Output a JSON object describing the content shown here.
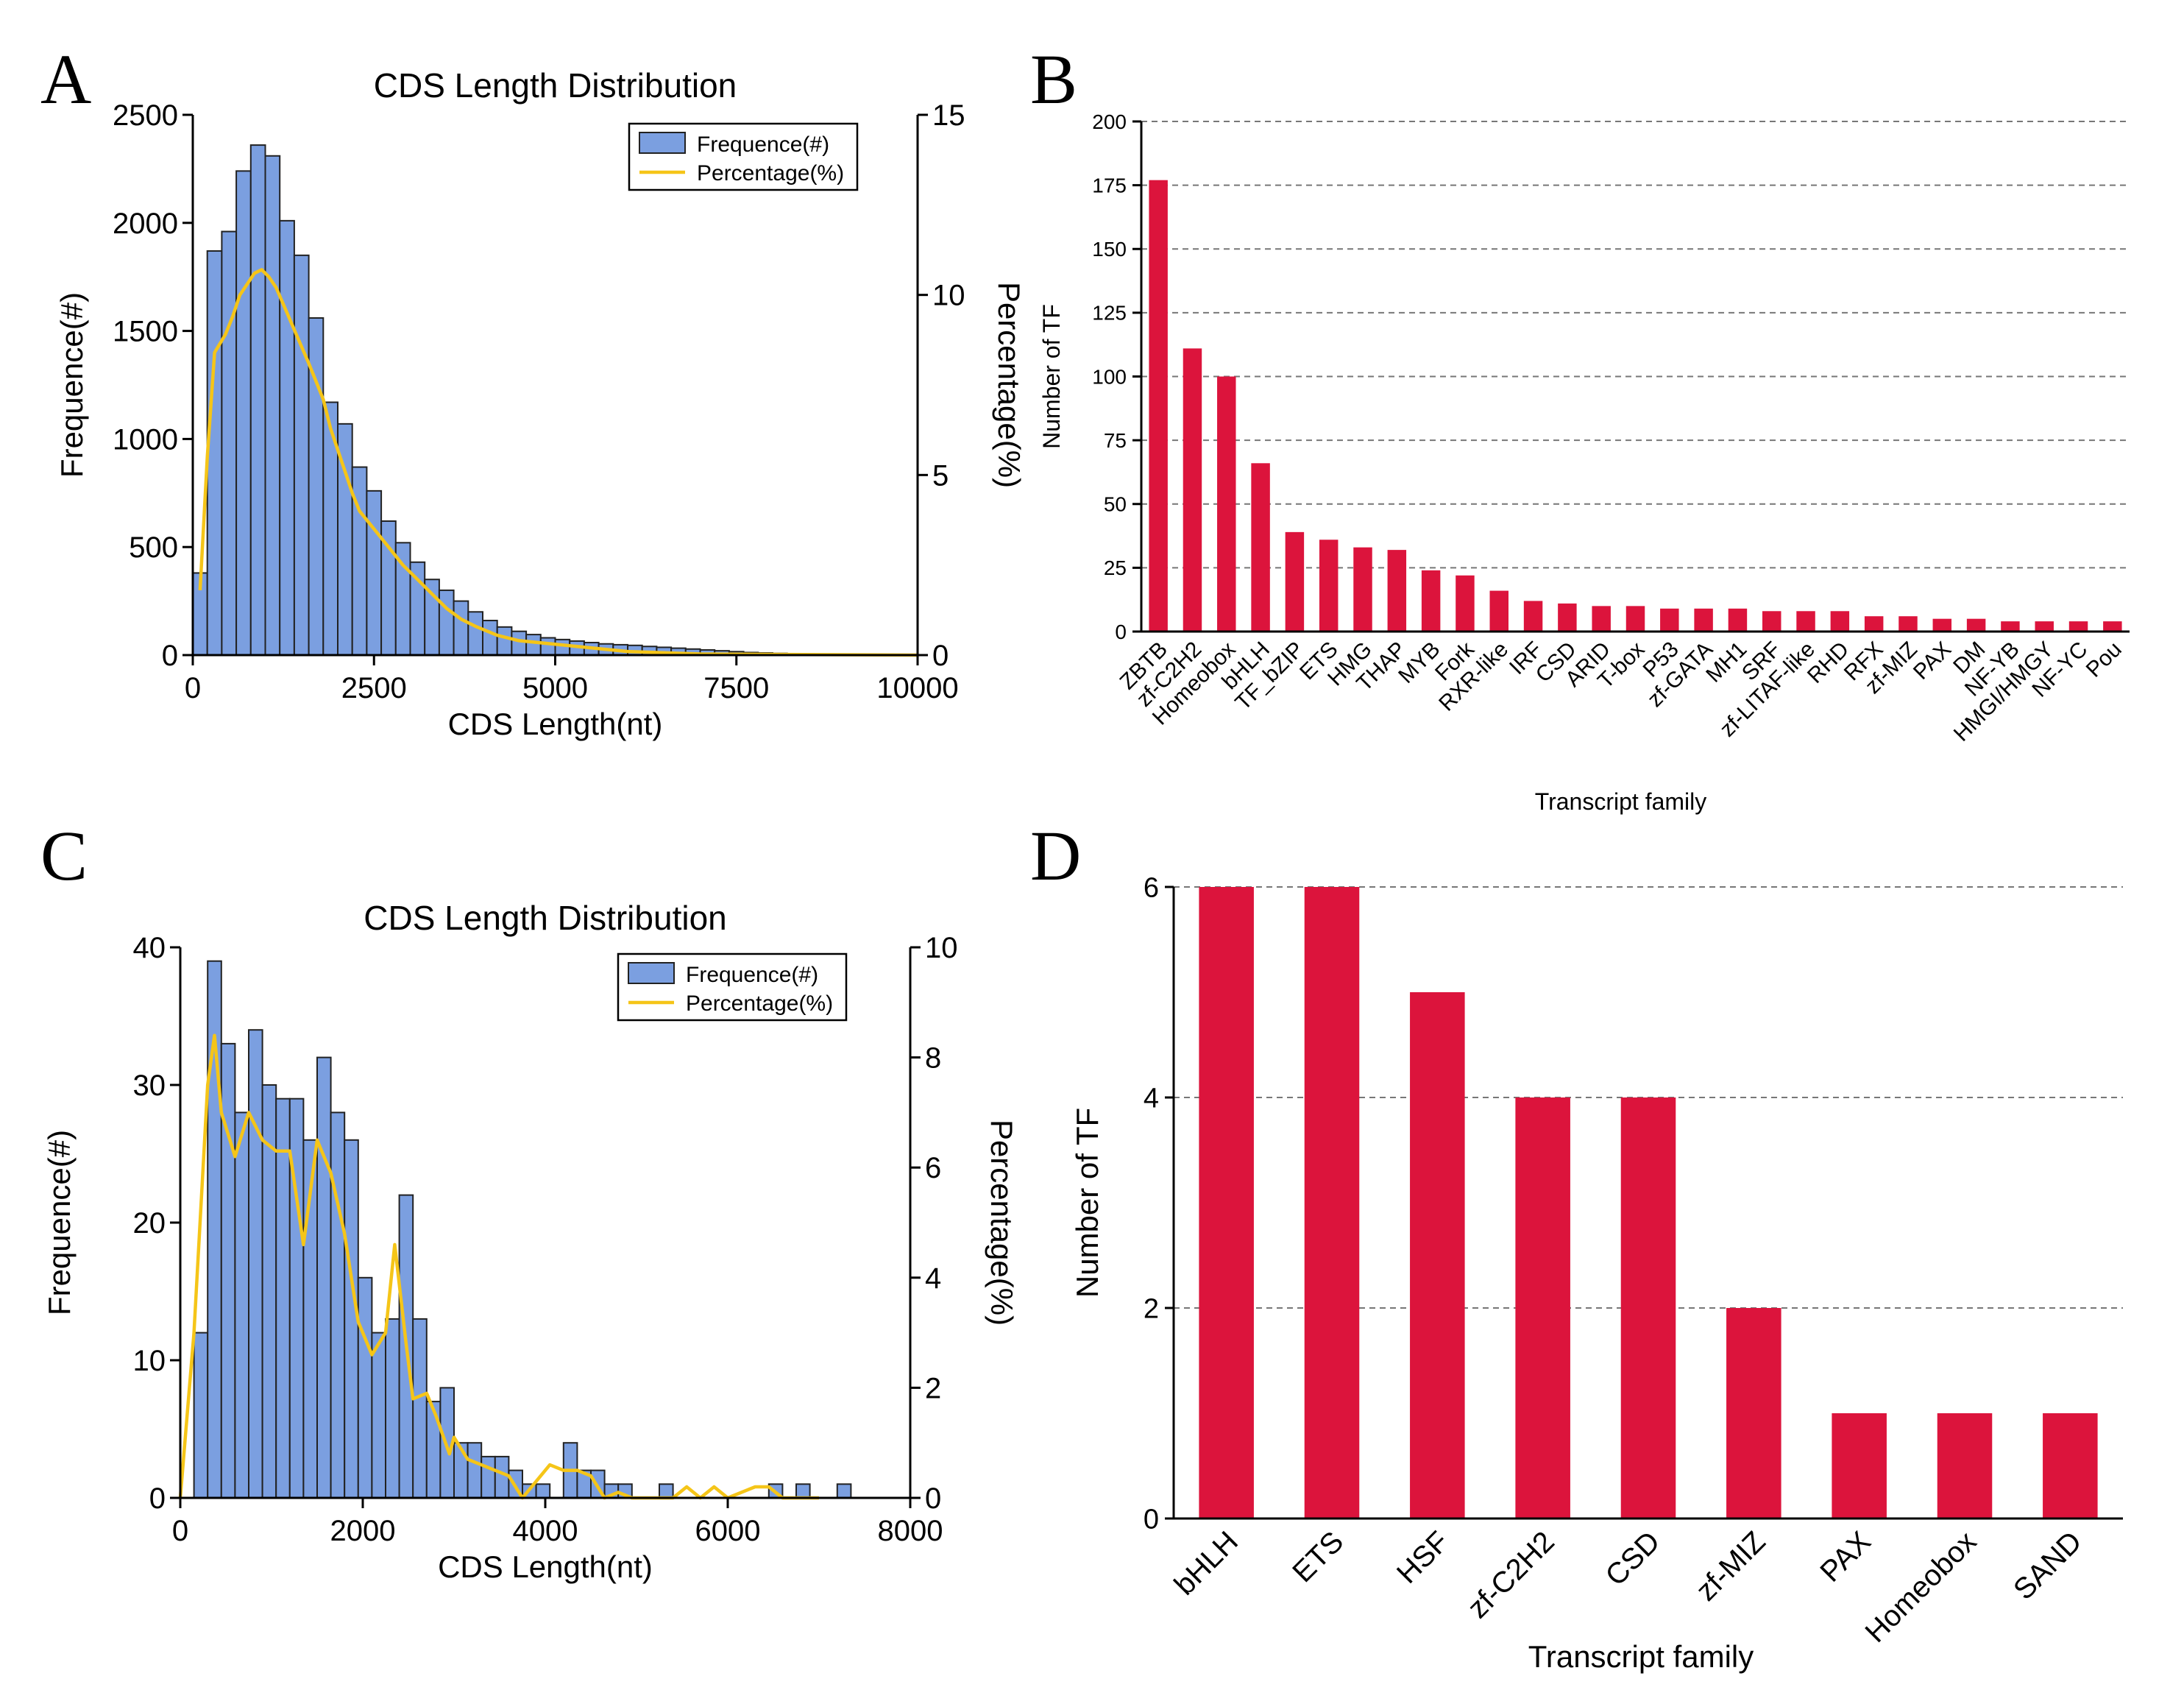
{
  "chart_data": [
    {
      "panel": "A",
      "type": "histogram",
      "title": "CDS Length Distribution",
      "xlabel": "CDS Length(nt)",
      "ylabel": "Frequence(#)",
      "y2label": "Percentage(%)",
      "xlim": [
        0,
        10000
      ],
      "ylim": [
        0,
        2500
      ],
      "y2lim": [
        0,
        15
      ],
      "xticks": [
        "0",
        "2500",
        "5000",
        "7500",
        "10000"
      ],
      "yticks": [
        "0",
        "500",
        "1000",
        "1500",
        "2000",
        "2500"
      ],
      "y2ticks": [
        "0",
        "5",
        "10",
        "15"
      ],
      "legend": {
        "position": "top-right",
        "bar_label": "Frequence(#)",
        "line_label": "Percentage(%)"
      },
      "bin_width": 200,
      "bin_start": 0,
      "frequencies": [
        380,
        1870,
        1960,
        2240,
        2360,
        2310,
        2010,
        1850,
        1560,
        1170,
        1070,
        870,
        760,
        620,
        520,
        430,
        350,
        300,
        250,
        200,
        160,
        130,
        110,
        95,
        80,
        72,
        65,
        58,
        52,
        48,
        45,
        40,
        36,
        32,
        28,
        24,
        20,
        16,
        12,
        10,
        8,
        6,
        5,
        4,
        3,
        3,
        2,
        2,
        2,
        2
      ],
      "percentage": [
        [
          100,
          1.8
        ],
        [
          200,
          5.5
        ],
        [
          300,
          8.4
        ],
        [
          450,
          8.9
        ],
        [
          550,
          9.4
        ],
        [
          650,
          10.0
        ],
        [
          750,
          10.3
        ],
        [
          850,
          10.6
        ],
        [
          950,
          10.7
        ],
        [
          1050,
          10.5
        ],
        [
          1150,
          10.2
        ],
        [
          1300,
          9.5
        ],
        [
          1450,
          8.8
        ],
        [
          1600,
          8.1
        ],
        [
          1700,
          7.6
        ],
        [
          1800,
          7.1
        ],
        [
          1900,
          6.3
        ],
        [
          2000,
          5.7
        ],
        [
          2100,
          5.1
        ],
        [
          2200,
          4.5
        ],
        [
          2300,
          4.0
        ],
        [
          2500,
          3.5
        ],
        [
          2700,
          3.0
        ],
        [
          2900,
          2.5
        ],
        [
          3100,
          2.1
        ],
        [
          3300,
          1.7
        ],
        [
          3500,
          1.3
        ],
        [
          3700,
          1.0
        ],
        [
          3900,
          0.8
        ],
        [
          4200,
          0.55
        ],
        [
          4500,
          0.4
        ],
        [
          5000,
          0.3
        ],
        [
          5500,
          0.2
        ],
        [
          6000,
          0.1
        ],
        [
          7000,
          0.03
        ],
        [
          10000,
          0.0
        ]
      ],
      "colors": {
        "bar": "#7b9fe0",
        "bar_edge": "#222222",
        "line": "#f5c518"
      }
    },
    {
      "panel": "B",
      "type": "bar",
      "xlabel": "Transcript family",
      "ylabel": "Number of TF",
      "ylim": [
        0,
        200
      ],
      "yticks": [
        "0",
        "25",
        "50",
        "75",
        "100",
        "125",
        "150",
        "175",
        "200"
      ],
      "categories": [
        "ZBTB",
        "zf-C2H2",
        "Homeobox",
        "bHLH",
        "TF_bZIP",
        "ETS",
        "HMG",
        "THAP",
        "MYB",
        "Fork",
        "RXR-like",
        "IRF",
        "CSD",
        "ARID",
        "T-box",
        "P53",
        "zf-GATA",
        "MH1",
        "SRF",
        "zf-LITAF-like",
        "RHD",
        "RFX",
        "zf-MIZ",
        "PAX",
        "DM",
        "NF-YB",
        "HMGI/HMGY",
        "NF-YC",
        "Pou"
      ],
      "values": [
        177,
        111,
        100,
        66,
        39,
        36,
        33,
        32,
        24,
        22,
        16,
        12,
        11,
        10,
        10,
        9,
        9,
        9,
        8,
        8,
        8,
        6,
        6,
        5,
        5,
        4,
        4,
        4,
        4
      ],
      "grid": true,
      "colors": {
        "bar": "#dc143c"
      }
    },
    {
      "panel": "C",
      "type": "histogram",
      "title": "CDS Length Distribution",
      "xlabel": "CDS Length(nt)",
      "ylabel": "Frequence(#)",
      "y2label": "Percentage(%)",
      "xlim": [
        0,
        8000
      ],
      "ylim": [
        0,
        40
      ],
      "y2lim": [
        0,
        10
      ],
      "xticks": [
        "0",
        "2000",
        "4000",
        "6000",
        "8000"
      ],
      "yticks": [
        "0",
        "10",
        "20",
        "30",
        "40"
      ],
      "y2ticks": [
        "0",
        "2",
        "4",
        "6",
        "8",
        "10"
      ],
      "legend": {
        "position": "top-right",
        "bar_label": "Frequence(#)",
        "line_label": "Percentage(%)"
      },
      "bin_width": 150,
      "bin_start": 0,
      "frequencies": [
        0,
        12,
        39,
        33,
        28,
        34,
        30,
        29,
        29,
        26,
        32,
        28,
        26,
        16,
        12,
        13,
        22,
        13,
        7,
        8,
        4,
        4,
        3,
        3,
        2,
        1,
        1,
        0,
        4,
        2,
        2,
        1,
        1,
        0,
        0,
        1,
        0,
        0,
        0,
        0,
        0,
        0,
        0,
        1,
        0,
        1,
        0,
        0,
        1,
        0,
        0
      ],
      "percentage": [
        [
          0,
          0.0
        ],
        [
          150,
          3.0
        ],
        [
          300,
          7.5
        ],
        [
          375,
          8.4
        ],
        [
          450,
          7.0
        ],
        [
          600,
          6.2
        ],
        [
          750,
          7.0
        ],
        [
          900,
          6.5
        ],
        [
          1050,
          6.3
        ],
        [
          1200,
          6.3
        ],
        [
          1350,
          4.6
        ],
        [
          1500,
          6.5
        ],
        [
          1650,
          5.9
        ],
        [
          1800,
          4.8
        ],
        [
          1950,
          3.2
        ],
        [
          2100,
          2.6
        ],
        [
          2250,
          3.0
        ],
        [
          2350,
          4.6
        ],
        [
          2475,
          2.8
        ],
        [
          2550,
          1.8
        ],
        [
          2700,
          1.9
        ],
        [
          2800,
          1.5
        ],
        [
          2950,
          0.8
        ],
        [
          3000,
          1.1
        ],
        [
          3150,
          0.7
        ],
        [
          3300,
          0.6
        ],
        [
          3450,
          0.5
        ],
        [
          3600,
          0.4
        ],
        [
          3750,
          0.0
        ],
        [
          3900,
          0.3
        ],
        [
          4050,
          0.6
        ],
        [
          4200,
          0.5
        ],
        [
          4350,
          0.5
        ],
        [
          4500,
          0.4
        ],
        [
          4650,
          0.0
        ],
        [
          4800,
          0.1
        ],
        [
          4950,
          0.0
        ],
        [
          5400,
          0.0
        ],
        [
          5550,
          0.2
        ],
        [
          5700,
          0.0
        ],
        [
          5850,
          0.2
        ],
        [
          6000,
          0.0
        ],
        [
          6300,
          0.2
        ],
        [
          6450,
          0.2
        ],
        [
          6600,
          0.0
        ],
        [
          7000,
          0.0
        ]
      ],
      "colors": {
        "bar": "#7b9fe0",
        "bar_edge": "#222222",
        "line": "#f5c518"
      }
    },
    {
      "panel": "D",
      "type": "bar",
      "xlabel": "Transcript family",
      "ylabel": "Number of TF",
      "ylim": [
        0,
        6
      ],
      "yticks": [
        "0",
        "2",
        "4",
        "6"
      ],
      "categories": [
        "bHLH",
        "ETS",
        "HSF",
        "zf-C2H2",
        "CSD",
        "zf-MIZ",
        "PAX",
        "Homeobox",
        "SAND"
      ],
      "values": [
        6,
        6,
        5,
        4,
        4,
        2,
        1,
        1,
        1
      ],
      "grid": true,
      "colors": {
        "bar": "#dc143c"
      }
    }
  ],
  "panel_labels": [
    "A",
    "B",
    "C",
    "D"
  ]
}
